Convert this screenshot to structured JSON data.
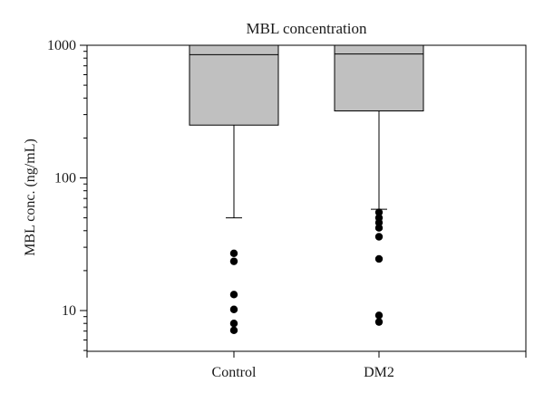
{
  "chart_data": {
    "type": "box",
    "title": "MBL concentration",
    "xlabel": "",
    "ylabel": "MBL conc. (ng/mL)",
    "yscale": "log",
    "ylim": [
      5,
      1000
    ],
    "yticks": [
      {
        "value": 10,
        "label": "10"
      },
      {
        "value": 100,
        "label": "100"
      },
      {
        "value": 1000,
        "label": "1000"
      }
    ],
    "categories": [
      "Control",
      "DM2"
    ],
    "box_color": "#c0c0c0",
    "boxes": [
      {
        "category": "Control",
        "q1": 250,
        "median": 850,
        "q3": 1000,
        "whisker_low": 50,
        "outliers": [
          27,
          23.5,
          13.2,
          10.2,
          8,
          7.1
        ]
      },
      {
        "category": "DM2",
        "q1": 320,
        "median": 860,
        "q3": 1000,
        "whisker_low": 58,
        "outliers": [
          55,
          50,
          46,
          42,
          36,
          24.5,
          9.2,
          8.2
        ]
      }
    ]
  }
}
